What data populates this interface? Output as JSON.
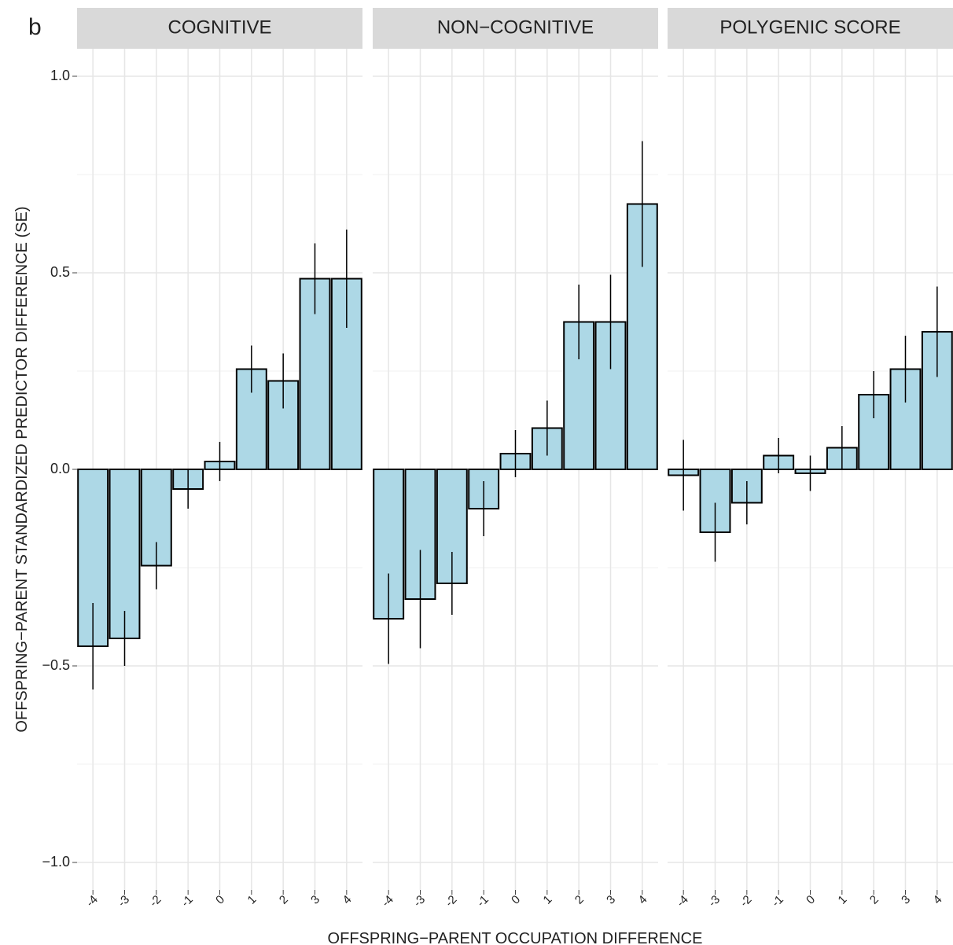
{
  "panel_label": "b",
  "x_label": "OFFSPRING−PARENT OCCUPATION DIFFERENCE",
  "y_label": "OFFSPRING−PARENT STANDARDIZED PREDICTOR DIFFERENCE (SE)",
  "chart_data": [
    {
      "type": "bar",
      "title": "COGNITIVE",
      "color": "#add8e6",
      "categories": [
        "-4",
        "-3",
        "-2",
        "-1",
        "0",
        "1",
        "2",
        "3",
        "4"
      ],
      "values": [
        -0.45,
        -0.43,
        -0.245,
        -0.05,
        0.02,
        0.255,
        0.225,
        0.485,
        0.485
      ],
      "errors": [
        0.11,
        0.07,
        0.06,
        0.05,
        0.05,
        0.06,
        0.07,
        0.09,
        0.125
      ],
      "ylim": [
        -1.07,
        1.07
      ],
      "yticks": [
        {
          "value": -1,
          "label": "−1.0"
        },
        {
          "value": -0.5,
          "label": "−0.5"
        },
        {
          "value": 0,
          "label": "0.0"
        },
        {
          "value": 0.5,
          "label": "0.5"
        },
        {
          "value": 1,
          "label": "1.0"
        }
      ],
      "grid": true
    },
    {
      "type": "bar",
      "title": "NON−COGNITIVE",
      "color": "#add8e6",
      "categories": [
        "-4",
        "-3",
        "-2",
        "-1",
        "0",
        "1",
        "2",
        "3",
        "4"
      ],
      "values": [
        -0.38,
        -0.33,
        -0.29,
        -0.1,
        0.04,
        0.105,
        0.375,
        0.375,
        0.675
      ],
      "errors": [
        0.115,
        0.125,
        0.08,
        0.07,
        0.06,
        0.07,
        0.095,
        0.12,
        0.16
      ],
      "ylim": [
        -1.07,
        1.07
      ],
      "yticks": [
        {
          "value": -1,
          "label": "−1.0"
        },
        {
          "value": -0.5,
          "label": "−0.5"
        },
        {
          "value": 0,
          "label": "0.0"
        },
        {
          "value": 0.5,
          "label": "0.5"
        },
        {
          "value": 1,
          "label": "1.0"
        }
      ],
      "grid": true
    },
    {
      "type": "bar",
      "title": "POLYGENIC SCORE",
      "color": "#add8e6",
      "categories": [
        "-4",
        "-3",
        "-2",
        "-1",
        "0",
        "1",
        "2",
        "3",
        "4"
      ],
      "values": [
        -0.015,
        -0.16,
        -0.085,
        0.035,
        -0.01,
        0.055,
        0.19,
        0.255,
        0.35
      ],
      "errors": [
        0.09,
        0.075,
        0.055,
        0.045,
        0.045,
        0.055,
        0.06,
        0.085,
        0.115
      ],
      "ylim": [
        -1.07,
        1.07
      ],
      "yticks": [
        {
          "value": -1,
          "label": "−1.0"
        },
        {
          "value": -0.5,
          "label": "−0.5"
        },
        {
          "value": 0,
          "label": "0.0"
        },
        {
          "value": 0.5,
          "label": "0.5"
        },
        {
          "value": 1,
          "label": "1.0"
        }
      ],
      "grid": true
    }
  ]
}
